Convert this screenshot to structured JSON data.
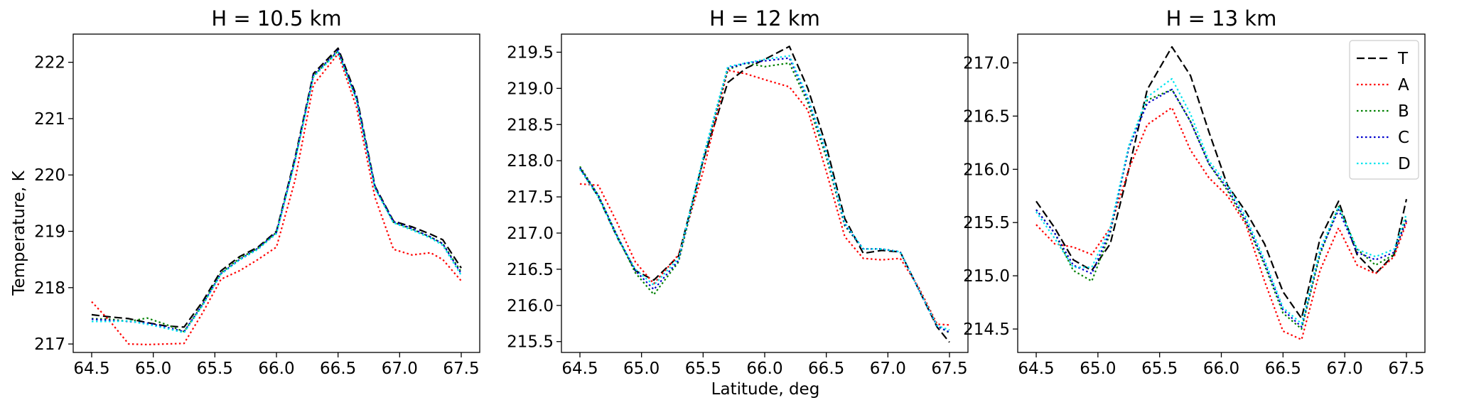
{
  "figure": {
    "xlabel": "Latitude, deg",
    "ylabel": "Temperature, K"
  },
  "chart_data": [
    {
      "type": "line",
      "title": "H = 10.5 km",
      "xlabel": "",
      "ylabel": "Temperature, K",
      "xlim": [
        64.35,
        67.65
      ],
      "ylim": [
        216.85,
        222.5
      ],
      "xticks": [
        "64.5",
        "65.0",
        "65.5",
        "66.0",
        "66.5",
        "67.0",
        "67.5"
      ],
      "yticks": [
        "217",
        "218",
        "219",
        "220",
        "221",
        "222"
      ],
      "x": [
        64.5,
        64.65,
        64.8,
        64.95,
        65.1,
        65.25,
        65.4,
        65.55,
        65.7,
        65.85,
        66.0,
        66.15,
        66.3,
        66.5,
        66.65,
        66.8,
        66.95,
        67.1,
        67.25,
        67.35,
        67.5
      ],
      "series": [
        {
          "name": "T",
          "color": "#000000",
          "style": "dashed",
          "values": [
            217.52,
            217.48,
            217.45,
            217.38,
            217.32,
            217.3,
            217.75,
            218.3,
            218.55,
            218.72,
            219.0,
            220.3,
            221.8,
            222.25,
            221.4,
            219.8,
            219.18,
            219.08,
            218.95,
            218.85,
            218.35
          ]
        },
        {
          "name": "A",
          "color": "#ff0000",
          "style": "dotted",
          "values": [
            217.75,
            217.4,
            217.0,
            216.99,
            217.0,
            217.01,
            217.55,
            218.15,
            218.3,
            218.5,
            218.72,
            219.9,
            221.6,
            222.15,
            221.2,
            219.6,
            218.68,
            218.58,
            218.62,
            218.5,
            218.12
          ]
        },
        {
          "name": "B",
          "color": "#008000",
          "style": "dotted",
          "values": [
            217.45,
            217.44,
            217.4,
            217.46,
            217.35,
            217.22,
            217.7,
            218.26,
            218.52,
            218.7,
            218.98,
            220.25,
            221.76,
            222.2,
            221.35,
            219.78,
            219.16,
            219.04,
            218.9,
            218.78,
            218.28
          ]
        },
        {
          "name": "C",
          "color": "#0000cd",
          "style": "dotted",
          "values": [
            217.44,
            217.42,
            217.4,
            217.37,
            217.3,
            217.22,
            217.7,
            218.25,
            218.5,
            218.7,
            218.98,
            220.26,
            221.77,
            222.21,
            221.36,
            219.78,
            219.17,
            219.05,
            218.9,
            218.78,
            218.25
          ]
        },
        {
          "name": "D",
          "color": "#00e5ee",
          "style": "dotted",
          "values": [
            217.4,
            217.4,
            217.41,
            217.35,
            217.28,
            217.2,
            217.68,
            218.24,
            218.49,
            218.68,
            218.96,
            220.24,
            221.74,
            222.18,
            221.33,
            219.76,
            219.15,
            219.02,
            218.88,
            218.75,
            218.22
          ]
        }
      ]
    },
    {
      "type": "line",
      "title": "H = 12 km",
      "xlabel": "Latitude, deg",
      "ylabel": "",
      "xlim": [
        64.35,
        67.65
      ],
      "ylim": [
        215.35,
        219.75
      ],
      "xticks": [
        "64.5",
        "65.0",
        "65.5",
        "66.0",
        "66.5",
        "67.0",
        "67.5"
      ],
      "yticks": [
        "215.5",
        "216.0",
        "216.5",
        "217.0",
        "217.5",
        "218.0",
        "218.5",
        "219.0",
        "219.5"
      ],
      "x": [
        64.5,
        64.65,
        64.8,
        64.95,
        65.1,
        65.3,
        65.5,
        65.7,
        65.85,
        66.0,
        66.2,
        66.35,
        66.5,
        66.65,
        66.8,
        66.95,
        67.1,
        67.25,
        67.4,
        67.5
      ],
      "series": [
        {
          "name": "T",
          "color": "#000000",
          "style": "dashed",
          "values": [
            217.9,
            217.5,
            216.95,
            216.48,
            216.35,
            216.68,
            218.0,
            219.08,
            219.28,
            219.4,
            219.58,
            219.0,
            218.2,
            217.2,
            216.72,
            216.76,
            216.74,
            216.22,
            215.7,
            215.49
          ]
        },
        {
          "name": "A",
          "color": "#ff0000",
          "style": "dotted",
          "values": [
            217.68,
            217.66,
            217.15,
            216.6,
            216.3,
            216.7,
            217.85,
            219.25,
            219.2,
            219.12,
            219.02,
            218.7,
            217.85,
            216.95,
            216.65,
            216.63,
            216.65,
            216.25,
            215.74,
            215.73
          ]
        },
        {
          "name": "B",
          "color": "#008000",
          "style": "dotted",
          "values": [
            217.92,
            217.52,
            216.97,
            216.45,
            216.15,
            216.6,
            218.0,
            219.26,
            219.35,
            219.3,
            219.35,
            218.8,
            218.05,
            217.1,
            216.78,
            216.78,
            216.74,
            216.22,
            215.72,
            215.62
          ]
        },
        {
          "name": "C",
          "color": "#0000cd",
          "style": "dotted",
          "values": [
            217.9,
            217.52,
            216.97,
            216.48,
            216.22,
            216.62,
            218.02,
            219.28,
            219.35,
            219.38,
            219.42,
            218.85,
            218.1,
            217.12,
            216.78,
            216.78,
            216.74,
            216.22,
            215.71,
            215.63
          ]
        },
        {
          "name": "D",
          "color": "#00e5ee",
          "style": "dotted",
          "values": [
            217.88,
            217.5,
            216.95,
            216.5,
            216.28,
            216.65,
            218.05,
            219.3,
            219.35,
            219.4,
            219.45,
            218.88,
            218.12,
            217.14,
            216.78,
            216.78,
            216.74,
            216.22,
            215.72,
            215.66
          ]
        }
      ]
    },
    {
      "type": "line",
      "title": "H = 13 km",
      "xlabel": "",
      "ylabel": "",
      "xlim": [
        64.35,
        67.65
      ],
      "ylim": [
        214.28,
        217.27
      ],
      "xticks": [
        "64.5",
        "65.0",
        "65.5",
        "66.0",
        "66.5",
        "67.0",
        "67.5"
      ],
      "yticks": [
        "214.5",
        "215.0",
        "215.5",
        "216.0",
        "216.5",
        "217.0"
      ],
      "legend": "top-right",
      "x": [
        64.5,
        64.65,
        64.8,
        64.95,
        65.1,
        65.25,
        65.4,
        65.6,
        65.75,
        65.9,
        66.05,
        66.2,
        66.35,
        66.5,
        66.65,
        66.8,
        66.95,
        67.1,
        67.25,
        67.4,
        67.5
      ],
      "series": [
        {
          "name": "T",
          "color": "#000000",
          "style": "dashed",
          "values": [
            215.7,
            215.45,
            215.15,
            215.05,
            215.3,
            216.0,
            216.75,
            217.15,
            216.88,
            216.35,
            215.85,
            215.6,
            215.3,
            214.85,
            214.6,
            215.35,
            215.7,
            215.2,
            215.02,
            215.2,
            215.72
          ]
        },
        {
          "name": "A",
          "color": "#ff0000",
          "style": "dotted",
          "values": [
            215.48,
            215.3,
            215.27,
            215.2,
            215.45,
            216.0,
            216.42,
            216.58,
            216.18,
            215.92,
            215.75,
            215.48,
            214.95,
            214.48,
            214.4,
            215.05,
            215.45,
            215.1,
            215.02,
            215.18,
            215.5
          ]
        },
        {
          "name": "B",
          "color": "#008000",
          "style": "dotted",
          "values": [
            215.62,
            215.4,
            215.05,
            214.95,
            215.4,
            216.2,
            216.65,
            216.75,
            216.45,
            216.05,
            215.8,
            215.5,
            215.1,
            214.65,
            214.5,
            215.2,
            215.65,
            215.25,
            215.1,
            215.2,
            215.55
          ]
        },
        {
          "name": "C",
          "color": "#0000cd",
          "style": "dotted",
          "values": [
            215.62,
            215.4,
            215.1,
            215.02,
            215.42,
            216.2,
            216.62,
            216.75,
            216.45,
            216.05,
            215.82,
            215.52,
            215.12,
            214.68,
            214.52,
            215.22,
            215.62,
            215.22,
            215.15,
            215.22,
            215.52
          ]
        },
        {
          "name": "D",
          "color": "#00e5ee",
          "style": "dotted",
          "values": [
            215.6,
            215.35,
            215.08,
            215.08,
            215.45,
            216.22,
            216.68,
            216.85,
            216.52,
            216.08,
            215.85,
            215.55,
            215.15,
            214.7,
            214.55,
            215.25,
            215.65,
            215.25,
            215.18,
            215.25,
            215.58
          ]
        }
      ]
    }
  ]
}
